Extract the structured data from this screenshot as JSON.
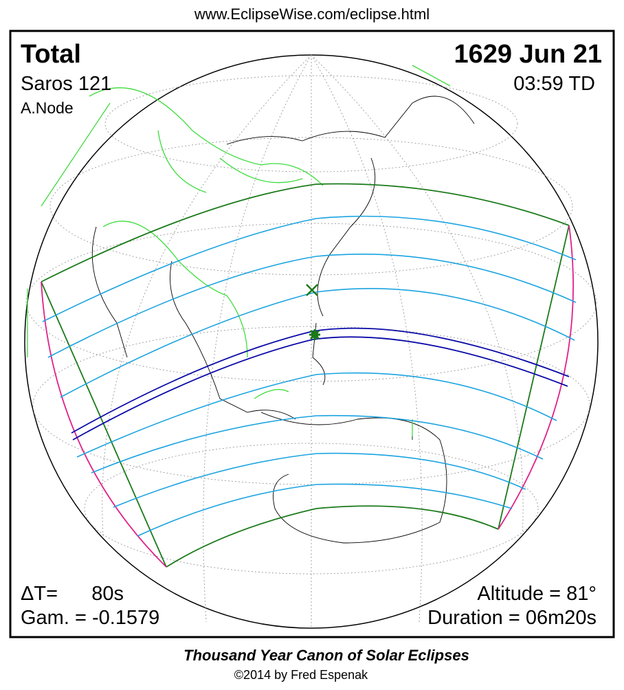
{
  "header": {
    "url": "www.EclipseWise.com/eclipse.html"
  },
  "eclipse": {
    "type": "Total",
    "date": "1629 Jun 21",
    "saros": "Saros 121",
    "time": "03:59 TD",
    "node": "A.Node",
    "delta_t_label": "ΔT=",
    "delta_t_value": "80s",
    "gamma": "Gam. = -0.1579",
    "altitude": "Altitude = 81°",
    "duration": "Duration = 06m20s"
  },
  "footer": {
    "title": "Thousand Year Canon of Solar Eclipses",
    "copyright": "©2014 by Fred Espenak"
  }
}
